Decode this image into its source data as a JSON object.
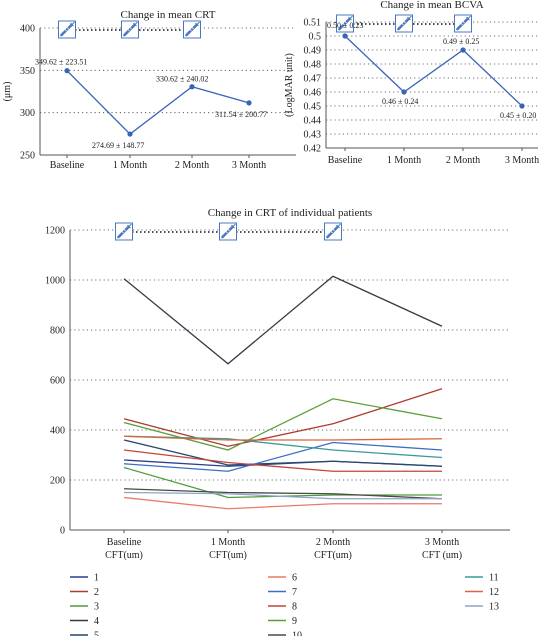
{
  "colors": {
    "mean_line": "#3864b8",
    "axis": "#555555",
    "grid": "#444444",
    "icon": "#4a78c0"
  },
  "injection_icon": "syringe-icon",
  "chart_data": [
    {
      "id": "crt",
      "type": "line",
      "title": "Change in mean CRT",
      "ylabel": "(μm)",
      "xlabel": "",
      "categories": [
        "Baseline",
        "1 Month",
        "2 Month",
        "3 Month"
      ],
      "yticks": [
        250,
        300,
        350,
        400
      ],
      "ylim": [
        250,
        400
      ],
      "grid": "horizontal-dotted",
      "series": [
        {
          "values": [
            349.62,
            274.69,
            330.62,
            311.54
          ],
          "labels": [
            "349.62 ± 223.51",
            "274.69 ± 148.77",
            "330.62 ± 240.02",
            "311.54 ± 200.77"
          ]
        }
      ],
      "injections_at": [
        0,
        1,
        2
      ]
    },
    {
      "id": "bcva",
      "type": "line",
      "title": "Change in mean BCVA",
      "ylabel": "(LogMAR unit)",
      "xlabel": "",
      "categories": [
        "Baseline",
        "1 Month",
        "2 Month",
        "3 Month"
      ],
      "yticks": [
        0.42,
        0.43,
        0.44,
        0.45,
        0.46,
        0.47,
        0.48,
        0.49,
        0.5,
        0.51
      ],
      "ylim": [
        0.42,
        0.51
      ],
      "grid": "horizontal-dotted",
      "series": [
        {
          "values": [
            0.5,
            0.46,
            0.49,
            0.45
          ],
          "labels": [
            "0.50 ± 0.23",
            "0.46 ± 0.24",
            "0.49 ± 0.25",
            "0.45 ± 0.20"
          ]
        }
      ],
      "injections_at": [
        0,
        1,
        2
      ]
    },
    {
      "id": "individual",
      "type": "line",
      "title": "Change in CRT of individual patients",
      "ylabel": "",
      "xlabel": "",
      "categories": [
        [
          "Baseline",
          "CFT(um)"
        ],
        [
          "1 Month",
          "CFT(um)"
        ],
        [
          "2 Month",
          "CFT(um)"
        ],
        [
          "3 Month",
          "CFT (um)"
        ]
      ],
      "yticks": [
        0,
        200,
        400,
        600,
        800,
        1000,
        1200
      ],
      "ylim": [
        0,
        1200
      ],
      "grid": "horizontal-dotted",
      "legend": "bottom",
      "series": [
        {
          "name": "1",
          "color": "#2c3e8c",
          "values": [
            280,
            255,
            275,
            255
          ]
        },
        {
          "name": "2",
          "color": "#b03a30",
          "values": [
            445,
            335,
            425,
            565
          ]
        },
        {
          "name": "3",
          "color": "#4e9a3c",
          "values": [
            250,
            130,
            140,
            140
          ]
        },
        {
          "name": "4",
          "color": "#333a44",
          "values": [
            1005,
            665,
            1015,
            815
          ]
        },
        {
          "name": "5",
          "color": "#27496d",
          "values": [
            360,
            260,
            275,
            255
          ]
        },
        {
          "name": "6",
          "color": "#e87a6a",
          "values": [
            130,
            85,
            105,
            105
          ]
        },
        {
          "name": "7",
          "color": "#3a6fc4",
          "values": [
            265,
            235,
            350,
            320
          ]
        },
        {
          "name": "8",
          "color": "#c2453a",
          "values": [
            320,
            270,
            235,
            235
          ]
        },
        {
          "name": "9",
          "color": "#5e9e3a",
          "values": [
            430,
            320,
            525,
            445
          ]
        },
        {
          "name": "10",
          "color": "#4a4a4a",
          "values": [
            165,
            150,
            145,
            125
          ]
        },
        {
          "name": "11",
          "color": "#3a9a9a",
          "values": [
            375,
            365,
            320,
            290
          ]
        },
        {
          "name": "12",
          "color": "#d9653a",
          "values": [
            375,
            360,
            360,
            365
          ]
        },
        {
          "name": "13",
          "color": "#8ca6c8",
          "values": [
            150,
            145,
            125,
            125
          ]
        }
      ],
      "injections_at": [
        0,
        1,
        2
      ]
    }
  ]
}
